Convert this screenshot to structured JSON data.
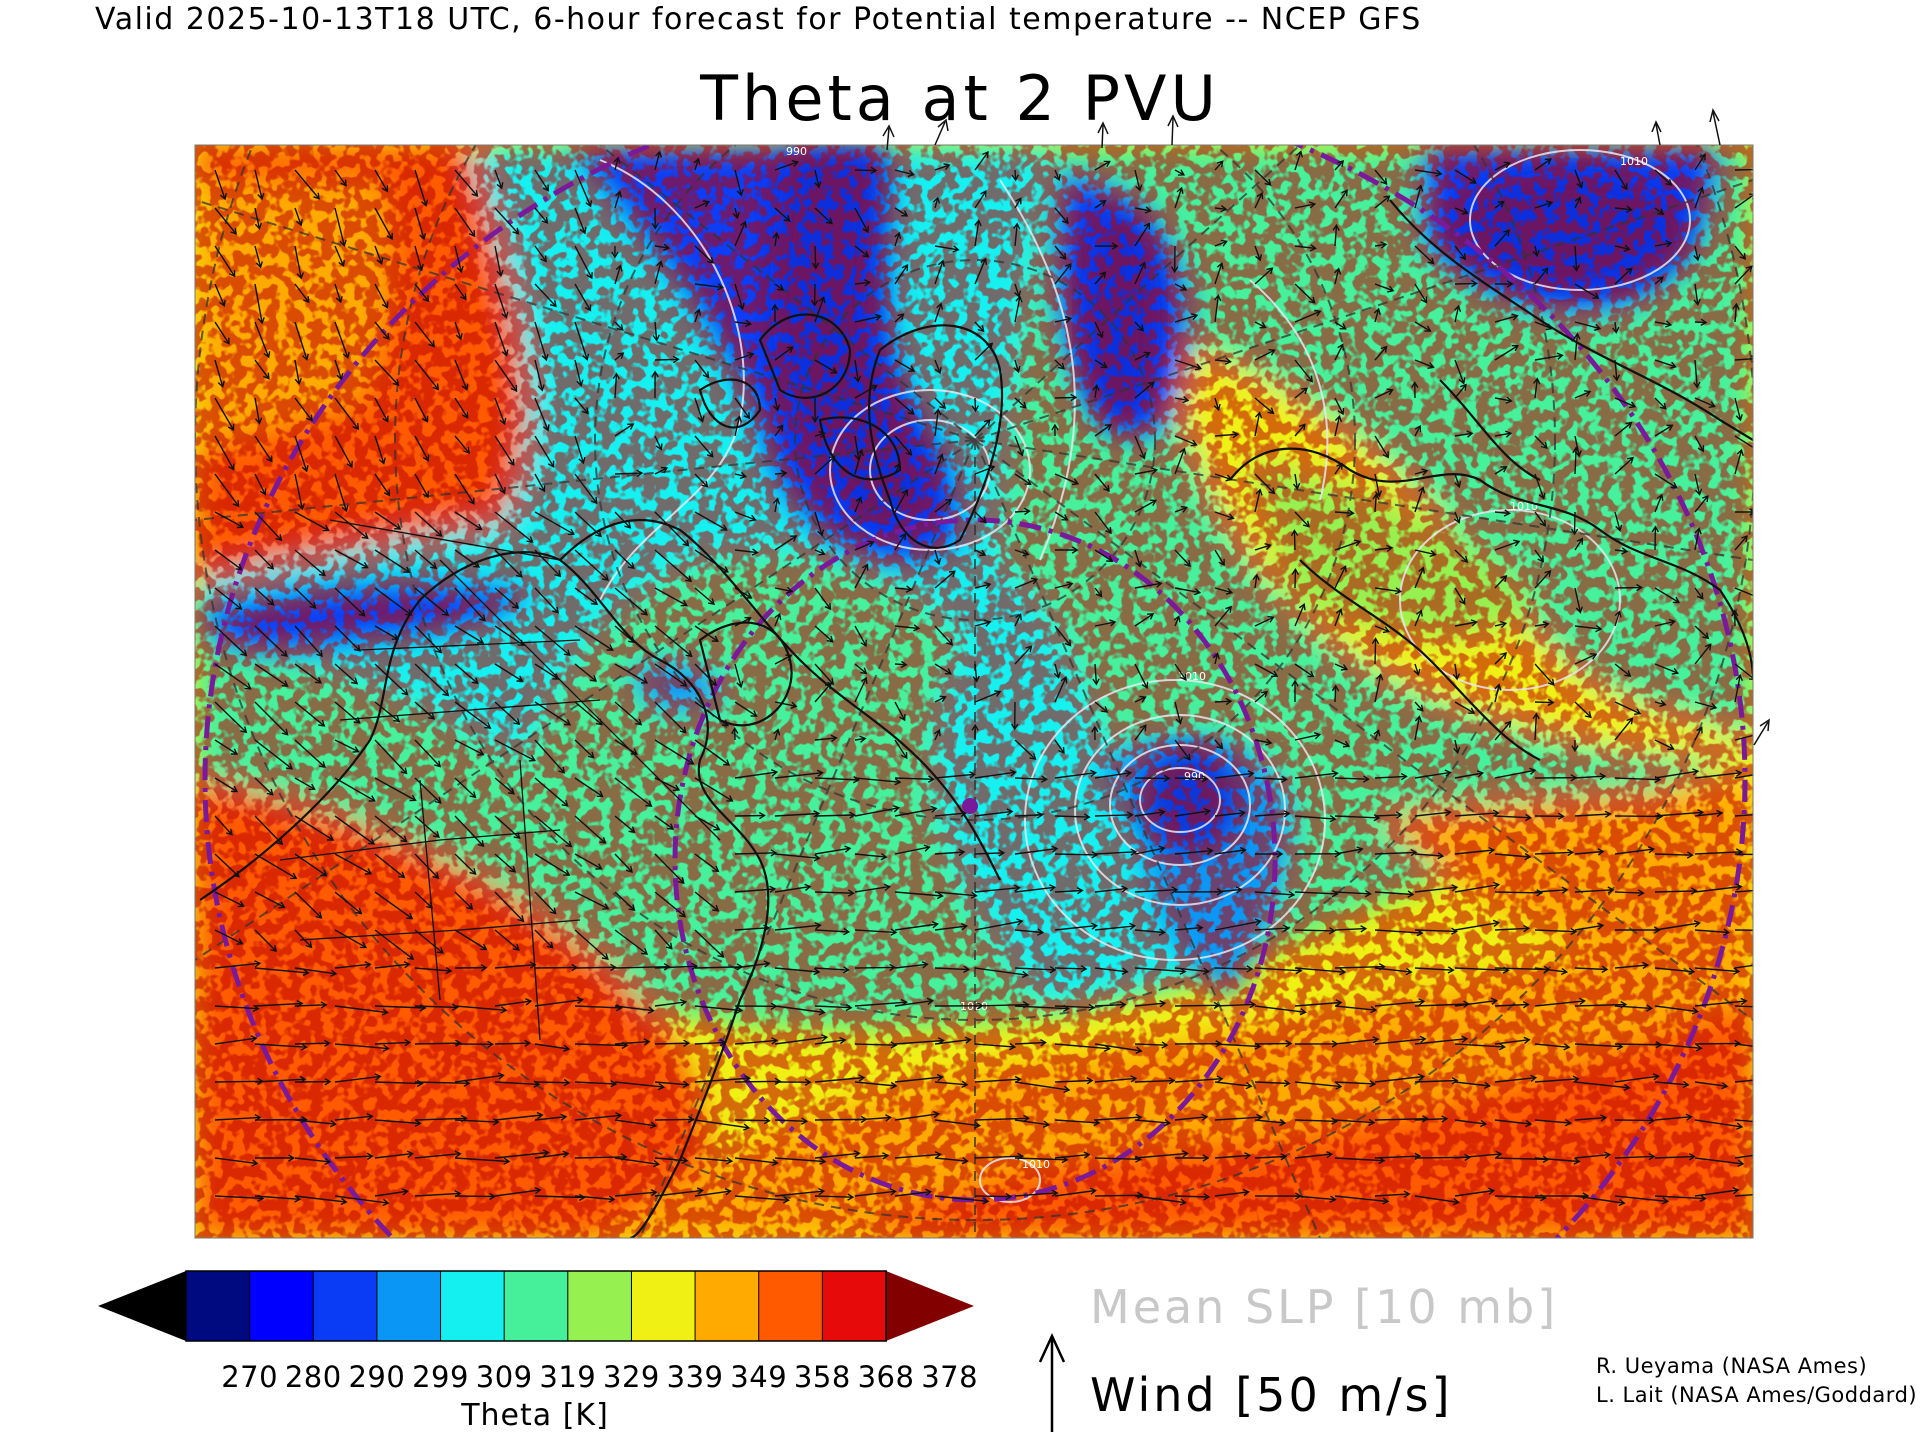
{
  "header": {
    "title": "Valid 2025-10-13T18 UTC, 6-hour forecast for Potential temperature -- NCEP GFS"
  },
  "map": {
    "title": "Theta at 2 PVU",
    "contour_labels": [
      "990",
      "990",
      "1010",
      "1010",
      "1010",
      "1010",
      "1020"
    ],
    "colors": {
      "background_warm": "#f26a0b",
      "low_dark": "#0a2fd8",
      "contour": "#e8e8f0",
      "ring": "#7a1a9a",
      "graticule": "#333333",
      "coast": "#111111"
    }
  },
  "legend": {
    "ticks": [
      "270",
      "280",
      "290",
      "299",
      "309",
      "319",
      "329",
      "339",
      "349",
      "358",
      "368",
      "378"
    ],
    "label": "Theta [K]",
    "colors": [
      "#000000",
      "#000a80",
      "#0000ff",
      "#0a3cf5",
      "#0a96f5",
      "#14f0f0",
      "#46f09b",
      "#96f050",
      "#f0f014",
      "#ffaa00",
      "#ff5a00",
      "#e60a0a",
      "#820000"
    ],
    "slp_label": "Mean SLP [10 mb]",
    "wind_label": "Wind [50 m/s]"
  },
  "credits": {
    "line1": "R. Ueyama (NASA Ames)",
    "line2": "L. Lait (NASA Ames/Goddard)"
  }
}
